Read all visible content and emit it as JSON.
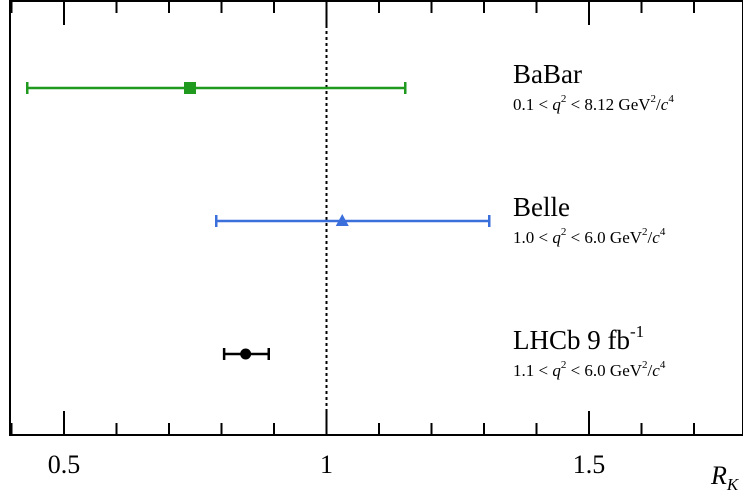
{
  "chart_data": {
    "type": "scatter",
    "xlabel": "R",
    "xlabel_sub": "K",
    "xlim": [
      0.4,
      1.8
    ],
    "xticks": [
      {
        "value": 0.5,
        "label": "0.5"
      },
      {
        "value": 1.0,
        "label": "1"
      },
      {
        "value": 1.5,
        "label": "1.5"
      }
    ],
    "reference_line": {
      "x": 1.0,
      "style": "dotted"
    },
    "grid": false,
    "series": [
      {
        "name": "BaBar",
        "range_prefix": "0.1 < ",
        "range_q": "q",
        "range_mid": " < 8.12 GeV",
        "range_sep": "/",
        "range_c": "c",
        "sup_q": "2",
        "sup_gev": "2",
        "sup_c": "4",
        "value": 0.74,
        "err_low": 0.31,
        "err_high": 0.41,
        "marker": "square",
        "color": "#1f9a1f"
      },
      {
        "name": "Belle",
        "range_prefix": "1.0 < ",
        "range_q": "q",
        "range_mid": " < 6.0 GeV",
        "range_sep": "/",
        "range_c": "c",
        "sup_q": "2",
        "sup_gev": "2",
        "sup_c": "4",
        "value": 1.03,
        "err_low": 0.24,
        "err_high": 0.28,
        "marker": "triangle",
        "color": "#3b6fdc"
      },
      {
        "name": "LHCb 9 fb",
        "name_sup": "-1",
        "range_prefix": "1.1 < ",
        "range_q": "q",
        "range_mid": " < 6.0 GeV",
        "range_sep": "/",
        "range_c": "c",
        "sup_q": "2",
        "sup_gev": "2",
        "sup_c": "4",
        "value": 0.846,
        "err_low": 0.041,
        "err_high": 0.044,
        "marker": "circle",
        "color": "#000000"
      }
    ]
  }
}
